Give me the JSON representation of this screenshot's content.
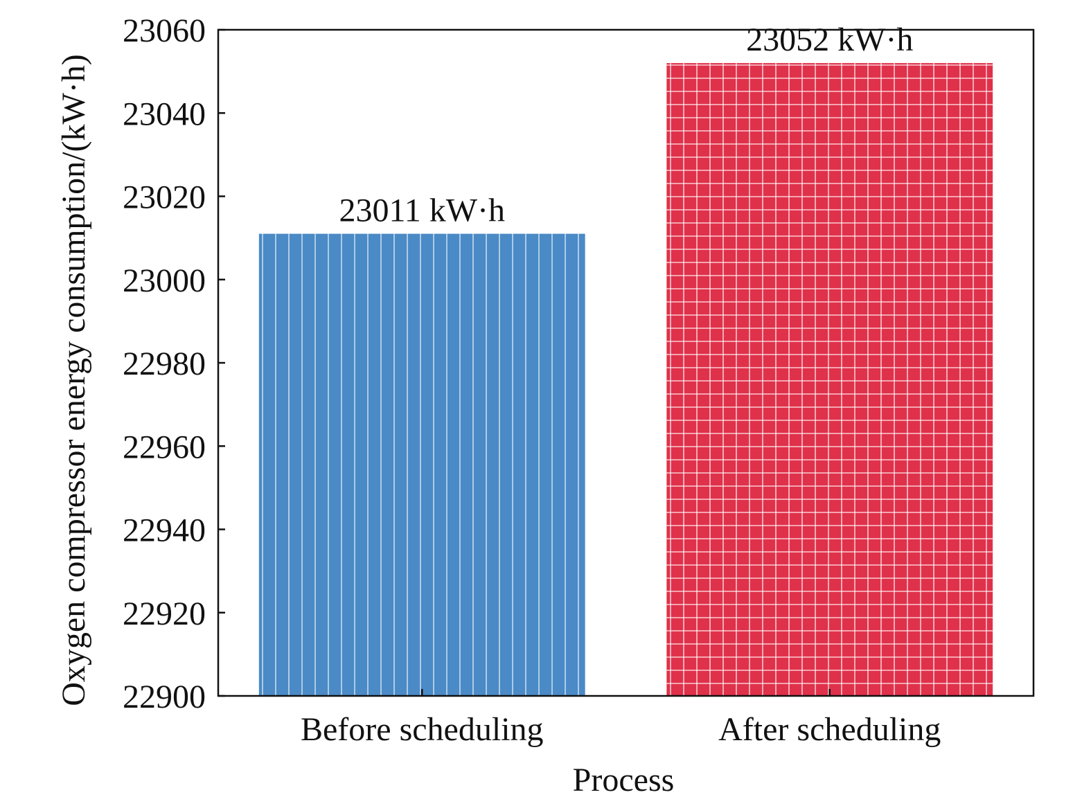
{
  "chart_data": {
    "type": "bar",
    "categories": [
      "Before scheduling",
      "After scheduling"
    ],
    "values": [
      23011,
      23052
    ],
    "data_labels": [
      "23011 kW·h",
      "23052 kW·h"
    ],
    "xlabel": "Process",
    "ylabel": "Oxygen compressor energy consumption/(kW·h)",
    "ylim": [
      22900,
      23060
    ],
    "yticks": [
      22900,
      22920,
      22940,
      22960,
      22980,
      23000,
      23020,
      23040,
      23060
    ],
    "ytick_labels": [
      "22900",
      "22920",
      "22940",
      "22960",
      "22980",
      "23000",
      "23020",
      "23040",
      "23060"
    ],
    "grid": false,
    "legend": "none",
    "bar_styles": [
      {
        "color": "#4a8ac6",
        "pattern": "vertical-lines"
      },
      {
        "color": "#e0314b",
        "pattern": "grid"
      }
    ]
  }
}
